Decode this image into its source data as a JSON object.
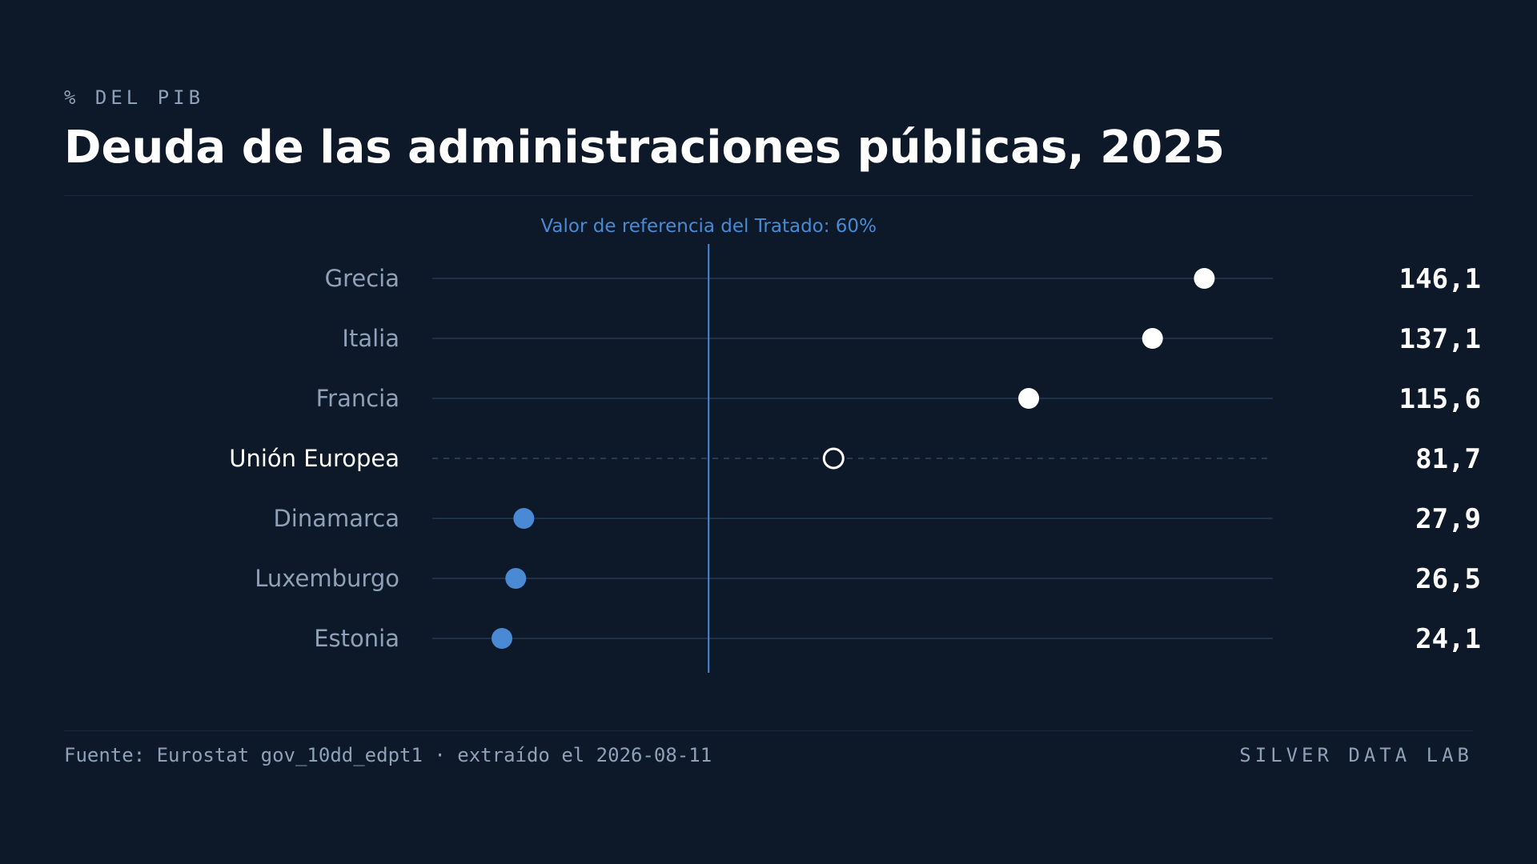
{
  "header": {
    "eyebrow": "% DEL PIB",
    "title": "Deuda de las administraciones públicas, 2025"
  },
  "chart_data": {
    "type": "scatter",
    "subtype": "dot-plot",
    "title": "Deuda de las administraciones públicas, 2025",
    "unit": "% DEL PIB",
    "categories": [
      "Grecia",
      "Italia",
      "Francia",
      "Unión Europea",
      "Dinamarca",
      "Luxemburgo",
      "Estonia"
    ],
    "values": [
      146.1,
      137.1,
      115.6,
      81.7,
      27.9,
      26.5,
      24.1
    ],
    "value_labels": [
      "146,1",
      "137,1",
      "115,6",
      "81,7",
      "27,9",
      "26,5",
      "24,1"
    ],
    "highlight_category": "Unión Europea",
    "xlim": [
      12,
      158
    ],
    "reference_line": {
      "value": 60,
      "label": "Valor de referencia del Tratado: 60%"
    },
    "grid": false,
    "legend": "none",
    "colors": {
      "above_reference": "#ffffff",
      "below_reference": "#4a8ad4",
      "aggregate": "#ffffff",
      "reference": "#4a8ad4"
    }
  },
  "footer": {
    "source": "Fuente: Eurostat gov_10dd_edpt1 · extraído el 2026-08-11",
    "brand": "SILVER DATA LAB"
  }
}
